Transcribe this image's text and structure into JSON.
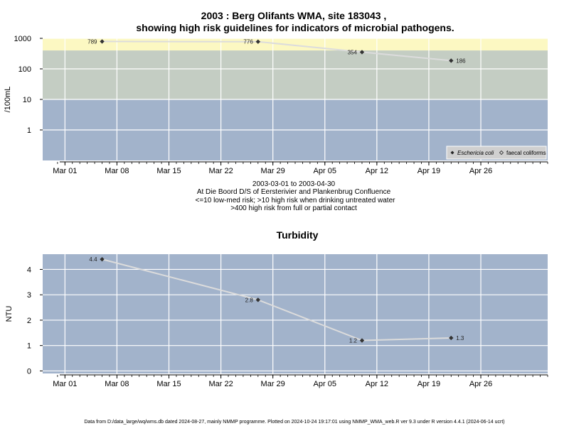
{
  "title_line1": "2003 : Berg Olifants WMA, site 183043 ,",
  "title_line2": "showing high risk guidelines for indicators of microbial pathogens.",
  "subtitle_lines": [
    "2003-03-01 to 2003-04-30",
    "At Die Boord D/S of Eersterivier and Plankenbrug Confluence",
    "<=10 low-med risk; >10 high risk when drinking untreated water",
    ">400 high risk from full or partial contact"
  ],
  "footer": "Data from D:/data_large/wq/wms.db dated 2024-08-27, mainly NMMP programme. Plotted on 2024-10-24 19:17:01 using NMMP_WMA_web.R ver 9.3 under R version 4.4.1 (2024-06-14 ucrt)",
  "colors": {
    "panel_bg": "#a2b3cb",
    "band_medium": "#c4cdc3",
    "band_high": "#fcf8c2",
    "grid": "#ffffff",
    "series_line": "#dcdcdc",
    "marker": "#333333"
  },
  "chart_data": [
    {
      "type": "line",
      "title": "",
      "ylabel": "/100mL",
      "yscale": "log10",
      "ylim": [
        0.1,
        1000
      ],
      "yticks": [
        1,
        10,
        100,
        1000
      ],
      "ytick_labels": [
        "1",
        "10",
        "100",
        "1000"
      ],
      "xlim": [
        "2003-02-26",
        "2003-05-05"
      ],
      "xticks": [
        "2003-03-01",
        "2003-03-08",
        "2003-03-15",
        "2003-03-22",
        "2003-03-29",
        "2003-04-05",
        "2003-04-12",
        "2003-04-19",
        "2003-04-26"
      ],
      "xtick_labels": [
        "Mar 01",
        "Mar 08",
        "Mar 15",
        "Mar 22",
        "Mar 29",
        "Apr 05",
        "Apr 12",
        "Apr 19",
        "Apr 26"
      ],
      "bands": [
        {
          "from": 0.1,
          "to": 10,
          "color": "#a2b3cb"
        },
        {
          "from": 10,
          "to": 400,
          "color": "#c4cdc3"
        },
        {
          "from": 400,
          "to": 1000,
          "color": "#fcf8c2"
        }
      ],
      "series": [
        {
          "name": "Eschericia coli",
          "x": [
            "2003-03-06",
            "2003-03-27",
            "2003-04-10",
            "2003-04-22"
          ],
          "y": [
            789,
            776,
            354,
            186
          ],
          "labels": [
            "789",
            "776",
            "354",
            "186"
          ]
        }
      ],
      "legend": {
        "position": "bottom-right",
        "entries": [
          "Eschericia coli",
          "faecal coliforms"
        ]
      }
    },
    {
      "type": "line",
      "title": "Turbidity",
      "ylabel": "NTU",
      "ylim": [
        -0.1,
        4.6
      ],
      "yticks": [
        0,
        1,
        2,
        3,
        4
      ],
      "ytick_labels": [
        "0",
        "1",
        "2",
        "3",
        "4"
      ],
      "xlim": [
        "2003-02-26",
        "2003-05-05"
      ],
      "xticks": [
        "2003-03-01",
        "2003-03-08",
        "2003-03-15",
        "2003-03-22",
        "2003-03-29",
        "2003-04-05",
        "2003-04-12",
        "2003-04-19",
        "2003-04-26"
      ],
      "xtick_labels": [
        "Mar 01",
        "Mar 08",
        "Mar 15",
        "Mar 22",
        "Mar 29",
        "Apr 05",
        "Apr 12",
        "Apr 19",
        "Apr 26"
      ],
      "series": [
        {
          "x": [
            "2003-03-06",
            "2003-03-27",
            "2003-04-10",
            "2003-04-22"
          ],
          "y": [
            4.4,
            2.8,
            1.2,
            1.3
          ],
          "labels": [
            "4.4",
            "2.8",
            "1.2",
            "1.3"
          ]
        }
      ]
    }
  ]
}
